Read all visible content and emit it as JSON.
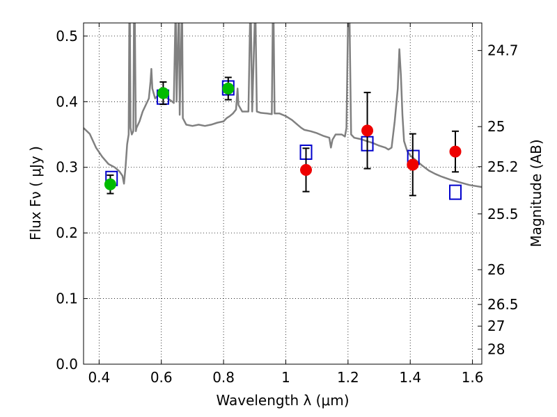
{
  "chart_data": {
    "type": "scatter",
    "xlabel": "Wavelength  λ (μm)",
    "ylabel": "Flux  Fν  ( μJy )",
    "y2label": "Magnitude (AB)",
    "xlim": [
      0.35,
      1.63
    ],
    "ylim": [
      0.0,
      0.52
    ],
    "xticks": [
      0.4,
      0.6,
      0.8,
      1.0,
      1.2,
      1.4,
      1.6
    ],
    "xtick_labels": [
      "0.4",
      "0.6",
      "0.8",
      "1",
      "1.2",
      "1.4",
      "1.6"
    ],
    "yticks": [
      0.0,
      0.1,
      0.2,
      0.3,
      0.4,
      0.5
    ],
    "ytick_labels": [
      "0.0",
      "0.1",
      "0.2",
      "0.3",
      "0.4",
      "0.5"
    ],
    "y2ticks": [
      {
        "label": "24.7",
        "flux": 0.478
      },
      {
        "label": "25",
        "flux": 0.362
      },
      {
        "label": "25.2",
        "flux": 0.301
      },
      {
        "label": "25.5",
        "flux": 0.229
      },
      {
        "label": "26",
        "flux": 0.144
      },
      {
        "label": "26.5",
        "flux": 0.091
      },
      {
        "label": "27",
        "flux": 0.058
      },
      {
        "label": "28",
        "flux": 0.023
      }
    ],
    "grid": true,
    "colors": {
      "template": "#808080",
      "model": "#0000cc",
      "green": "#00bb00",
      "red": "#ee0000",
      "errorbar": "#000000"
    },
    "template_spectrum": [
      [
        0.35,
        0.36
      ],
      [
        0.37,
        0.351
      ],
      [
        0.39,
        0.33
      ],
      [
        0.41,
        0.316
      ],
      [
        0.43,
        0.305
      ],
      [
        0.45,
        0.3
      ],
      [
        0.465,
        0.294
      ],
      [
        0.475,
        0.287
      ],
      [
        0.48,
        0.275
      ],
      [
        0.485,
        0.3
      ],
      [
        0.49,
        0.335
      ],
      [
        0.495,
        0.35
      ],
      [
        0.497,
        0.52
      ],
      [
        0.499,
        0.52
      ],
      [
        0.501,
        0.36
      ],
      [
        0.505,
        0.35
      ],
      [
        0.51,
        0.355
      ],
      [
        0.512,
        0.52
      ],
      [
        0.515,
        0.52
      ],
      [
        0.518,
        0.355
      ],
      [
        0.52,
        0.36
      ],
      [
        0.53,
        0.37
      ],
      [
        0.54,
        0.385
      ],
      [
        0.55,
        0.395
      ],
      [
        0.56,
        0.405
      ],
      [
        0.565,
        0.43
      ],
      [
        0.568,
        0.45
      ],
      [
        0.571,
        0.42
      ],
      [
        0.58,
        0.405
      ],
      [
        0.59,
        0.41
      ],
      [
        0.6,
        0.413
      ],
      [
        0.61,
        0.408
      ],
      [
        0.62,
        0.405
      ],
      [
        0.63,
        0.402
      ],
      [
        0.64,
        0.398
      ],
      [
        0.645,
        0.52
      ],
      [
        0.647,
        0.52
      ],
      [
        0.649,
        0.4
      ],
      [
        0.655,
        0.52
      ],
      [
        0.657,
        0.52
      ],
      [
        0.659,
        0.38
      ],
      [
        0.665,
        0.52
      ],
      [
        0.667,
        0.52
      ],
      [
        0.669,
        0.375
      ],
      [
        0.68,
        0.365
      ],
      [
        0.7,
        0.363
      ],
      [
        0.72,
        0.365
      ],
      [
        0.74,
        0.363
      ],
      [
        0.76,
        0.365
      ],
      [
        0.78,
        0.368
      ],
      [
        0.8,
        0.37
      ],
      [
        0.81,
        0.375
      ],
      [
        0.82,
        0.378
      ],
      [
        0.83,
        0.382
      ],
      [
        0.84,
        0.388
      ],
      [
        0.845,
        0.42
      ],
      [
        0.848,
        0.395
      ],
      [
        0.86,
        0.385
      ],
      [
        0.88,
        0.385
      ],
      [
        0.885,
        0.52
      ],
      [
        0.888,
        0.52
      ],
      [
        0.892,
        0.385
      ],
      [
        0.9,
        0.52
      ],
      [
        0.903,
        0.52
      ],
      [
        0.907,
        0.385
      ],
      [
        0.92,
        0.383
      ],
      [
        0.94,
        0.382
      ],
      [
        0.955,
        0.381
      ],
      [
        0.958,
        0.52
      ],
      [
        0.961,
        0.52
      ],
      [
        0.964,
        0.382
      ],
      [
        0.98,
        0.382
      ],
      [
        1.0,
        0.378
      ],
      [
        1.02,
        0.372
      ],
      [
        1.04,
        0.364
      ],
      [
        1.05,
        0.36
      ],
      [
        1.06,
        0.357
      ],
      [
        1.08,
        0.355
      ],
      [
        1.1,
        0.352
      ],
      [
        1.12,
        0.348
      ],
      [
        1.14,
        0.345
      ],
      [
        1.145,
        0.33
      ],
      [
        1.15,
        0.342
      ],
      [
        1.16,
        0.35
      ],
      [
        1.18,
        0.35
      ],
      [
        1.19,
        0.347
      ],
      [
        1.195,
        0.36
      ],
      [
        1.2,
        0.52
      ],
      [
        1.205,
        0.52
      ],
      [
        1.21,
        0.35
      ],
      [
        1.22,
        0.345
      ],
      [
        1.24,
        0.343
      ],
      [
        1.26,
        0.34
      ],
      [
        1.28,
        0.337
      ],
      [
        1.3,
        0.333
      ],
      [
        1.32,
        0.33
      ],
      [
        1.33,
        0.327
      ],
      [
        1.34,
        0.33
      ],
      [
        1.35,
        0.37
      ],
      [
        1.36,
        0.42
      ],
      [
        1.365,
        0.48
      ],
      [
        1.37,
        0.44
      ],
      [
        1.375,
        0.38
      ],
      [
        1.38,
        0.34
      ],
      [
        1.39,
        0.325
      ],
      [
        1.4,
        0.318
      ],
      [
        1.42,
        0.31
      ],
      [
        1.44,
        0.302
      ],
      [
        1.46,
        0.295
      ],
      [
        1.48,
        0.29
      ],
      [
        1.5,
        0.286
      ],
      [
        1.53,
        0.281
      ],
      [
        1.56,
        0.277
      ],
      [
        1.59,
        0.273
      ],
      [
        1.63,
        0.27
      ]
    ],
    "series": [
      {
        "marker": "open-square",
        "points": [
          {
            "x": 0.44,
            "y": 0.283
          },
          {
            "x": 0.605,
            "y": 0.407
          },
          {
            "x": 0.815,
            "y": 0.421
          },
          {
            "x": 1.065,
            "y": 0.323
          },
          {
            "x": 1.262,
            "y": 0.336
          },
          {
            "x": 1.41,
            "y": 0.315
          },
          {
            "x": 1.545,
            "y": 0.262
          }
        ]
      },
      {
        "marker": "green-circle",
        "points": [
          {
            "x": 0.436,
            "y": 0.274,
            "err": 0.014
          },
          {
            "x": 0.606,
            "y": 0.413,
            "err": 0.017
          },
          {
            "x": 0.815,
            "y": 0.42,
            "err": 0.017
          }
        ]
      },
      {
        "marker": "red-circle",
        "points": [
          {
            "x": 1.065,
            "y": 0.296,
            "err": 0.033
          },
          {
            "x": 1.262,
            "y": 0.356,
            "err": 0.058
          },
          {
            "x": 1.408,
            "y": 0.304,
            "err": 0.047
          },
          {
            "x": 1.545,
            "y": 0.324,
            "err": 0.031
          }
        ]
      }
    ]
  }
}
